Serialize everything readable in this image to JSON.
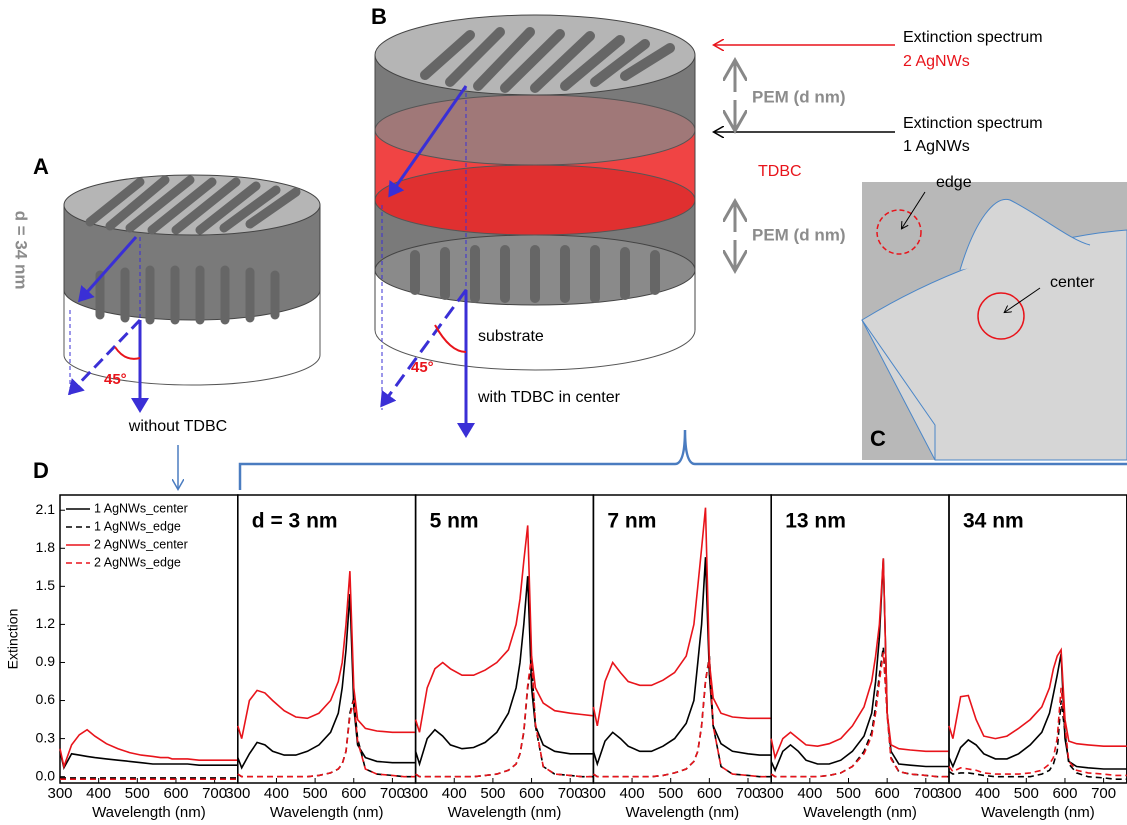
{
  "diagram": {
    "panel_a": "A",
    "panel_b": "B",
    "panel_c": "C",
    "panel_d": "D",
    "thickness": "d = 34 nm",
    "angle_a": "45°",
    "angle_b": "45°",
    "without": "without TDBC",
    "ext_top": "Extinction spectrum",
    "ext_top_n": "2 AgNWs",
    "pem_top": "PEM (d nm)",
    "ext_mid": "Extinction spectrum",
    "ext_mid_n": "1 AgNWs",
    "tdbc": "TDBC",
    "pem_bottom": "PEM (d nm)",
    "substrate": "substrate",
    "with": "with TDBC in center",
    "edge": "edge",
    "center": "center"
  },
  "chart_data": [
    {
      "type": "line",
      "ylabel": "Extinction",
      "xlabel": "Wavelength (nm)",
      "legend": "upper left",
      "x": [
        300,
        310,
        330,
        350,
        370,
        390,
        420,
        450,
        480,
        510,
        540,
        560,
        570,
        580,
        590,
        600,
        610,
        630,
        660,
        700,
        730,
        760
      ],
      "xlim": [
        300,
        760
      ],
      "xticks": [
        300,
        400,
        500,
        600,
        700
      ],
      "ylim": [
        -0.05,
        2.22
      ],
      "yticks": [
        {
          "value": 0,
          "label": "0.0"
        },
        0.3,
        0.6,
        0.9,
        1.2,
        1.5,
        1.8,
        2.1
      ],
      "series": [
        {
          "name": "1 AgNWs_center",
          "color": "#000000",
          "style": "solid",
          "values": [
            0.2,
            0.07,
            0.18,
            0.17,
            0.16,
            0.15,
            0.14,
            0.13,
            0.12,
            0.11,
            0.1,
            0.1,
            0.1,
            0.1,
            0.1,
            0.1,
            0.1,
            0.1,
            0.09,
            0.09,
            0.09,
            0.09
          ]
        },
        {
          "name": "1 AgNWs_edge",
          "color": "#000000",
          "style": "dashed",
          "values": [
            -0.01,
            -0.01,
            -0.01,
            -0.01,
            -0.01,
            -0.01,
            -0.01,
            -0.01,
            -0.01,
            -0.01,
            -0.01,
            -0.01,
            -0.01,
            -0.01,
            -0.01,
            -0.01,
            -0.01,
            -0.01,
            -0.01,
            -0.01,
            -0.01,
            -0.01
          ]
        },
        {
          "name": "2 AgNWs_center",
          "color": "#e8141b",
          "style": "solid",
          "values": [
            0.22,
            0.08,
            0.25,
            0.33,
            0.37,
            0.32,
            0.26,
            0.22,
            0.19,
            0.17,
            0.16,
            0.15,
            0.15,
            0.15,
            0.14,
            0.14,
            0.14,
            0.14,
            0.13,
            0.13,
            0.13,
            0.13
          ]
        },
        {
          "name": "2 AgNWs_edge",
          "color": "#e8141b",
          "style": "dashed",
          "values": [
            -0.02,
            -0.02,
            -0.02,
            -0.02,
            -0.02,
            -0.02,
            -0.02,
            -0.02,
            -0.02,
            -0.02,
            -0.02,
            -0.02,
            -0.02,
            -0.02,
            -0.02,
            -0.02,
            -0.02,
            -0.02,
            -0.02,
            -0.02,
            -0.02,
            -0.02
          ]
        }
      ]
    },
    {
      "type": "line",
      "title": "d = 3 nm",
      "xlabel": "Wavelength (nm)",
      "x": [
        300,
        310,
        330,
        350,
        370,
        390,
        420,
        450,
        480,
        510,
        540,
        560,
        570,
        580,
        590,
        600,
        610,
        630,
        660,
        700,
        730,
        760
      ],
      "xlim": [
        300,
        760
      ],
      "xticks": [
        300,
        400,
        500,
        600,
        700
      ],
      "ylim": [
        -0.05,
        2.22
      ],
      "series": [
        {
          "color": "#000000",
          "style": "solid",
          "values": [
            0.15,
            0.07,
            0.18,
            0.27,
            0.25,
            0.2,
            0.17,
            0.17,
            0.2,
            0.25,
            0.35,
            0.5,
            0.7,
            1.0,
            1.44,
            0.55,
            0.25,
            0.15,
            0.12,
            0.11,
            0.11,
            0.11
          ]
        },
        {
          "color": "#000000",
          "style": "dashed",
          "values": [
            0.02,
            0,
            0,
            0,
            0,
            0,
            0,
            0,
            0,
            0.01,
            0.03,
            0.06,
            0.1,
            0.2,
            0.5,
            0.62,
            0.3,
            0.06,
            0.02,
            0.01,
            0,
            0
          ]
        },
        {
          "color": "#e8141b",
          "style": "solid",
          "values": [
            0.4,
            0.3,
            0.6,
            0.68,
            0.66,
            0.6,
            0.52,
            0.47,
            0.46,
            0.5,
            0.6,
            0.75,
            0.9,
            1.2,
            1.62,
            0.7,
            0.45,
            0.38,
            0.36,
            0.35,
            0.35,
            0.35
          ]
        },
        {
          "color": "#e8141b",
          "style": "dashed",
          "values": [
            0.02,
            0,
            0,
            0,
            0,
            0,
            0,
            0,
            0,
            0.01,
            0.03,
            0.06,
            0.1,
            0.2,
            0.48,
            0.6,
            0.28,
            0.06,
            0.02,
            0.01,
            0,
            0
          ]
        }
      ]
    },
    {
      "type": "line",
      "title": "5 nm",
      "xlabel": "Wavelength (nm)",
      "x": [
        300,
        310,
        330,
        350,
        370,
        390,
        420,
        450,
        480,
        510,
        540,
        560,
        570,
        580,
        590,
        600,
        610,
        630,
        660,
        700,
        730,
        760
      ],
      "xlim": [
        300,
        760
      ],
      "xticks": [
        300,
        400,
        500,
        600,
        700
      ],
      "ylim": [
        -0.05,
        2.22
      ],
      "series": [
        {
          "color": "#000000",
          "style": "solid",
          "values": [
            0.2,
            0.1,
            0.3,
            0.37,
            0.32,
            0.25,
            0.22,
            0.23,
            0.27,
            0.35,
            0.5,
            0.7,
            0.9,
            1.2,
            1.58,
            0.7,
            0.4,
            0.25,
            0.2,
            0.18,
            0.18,
            0.18
          ]
        },
        {
          "color": "#000000",
          "style": "dashed",
          "values": [
            0.02,
            0,
            0,
            0,
            0,
            0,
            0,
            0,
            0.01,
            0.02,
            0.05,
            0.1,
            0.18,
            0.35,
            0.7,
            0.9,
            0.4,
            0.08,
            0.02,
            0.01,
            0,
            0
          ]
        },
        {
          "color": "#e8141b",
          "style": "solid",
          "values": [
            0.45,
            0.35,
            0.7,
            0.85,
            0.9,
            0.85,
            0.8,
            0.8,
            0.84,
            0.9,
            1.0,
            1.2,
            1.4,
            1.7,
            1.98,
            0.95,
            0.7,
            0.58,
            0.52,
            0.5,
            0.49,
            0.48
          ]
        },
        {
          "color": "#e8141b",
          "style": "dashed",
          "values": [
            0.02,
            0,
            0,
            0,
            0,
            0,
            0,
            0,
            0.01,
            0.02,
            0.05,
            0.1,
            0.18,
            0.36,
            0.72,
            0.95,
            0.42,
            0.08,
            0.02,
            0.01,
            0,
            0
          ]
        }
      ]
    },
    {
      "type": "line",
      "title": "7 nm",
      "xlabel": "Wavelength (nm)",
      "x": [
        300,
        310,
        330,
        350,
        370,
        390,
        420,
        450,
        480,
        510,
        540,
        560,
        570,
        580,
        590,
        600,
        610,
        630,
        660,
        700,
        730,
        760
      ],
      "xlim": [
        300,
        760
      ],
      "xticks": [
        300,
        400,
        500,
        600,
        700
      ],
      "ylim": [
        -0.05,
        2.22
      ],
      "series": [
        {
          "color": "#000000",
          "style": "solid",
          "values": [
            0.2,
            0.1,
            0.28,
            0.35,
            0.3,
            0.24,
            0.2,
            0.2,
            0.24,
            0.3,
            0.42,
            0.6,
            0.9,
            1.2,
            1.73,
            0.8,
            0.4,
            0.26,
            0.2,
            0.18,
            0.17,
            0.17
          ]
        },
        {
          "color": "#000000",
          "style": "dashed",
          "values": [
            0.02,
            0,
            0,
            0,
            0,
            0,
            0,
            0,
            0.01,
            0.03,
            0.06,
            0.12,
            0.2,
            0.4,
            0.75,
            0.95,
            0.4,
            0.08,
            0.02,
            0.01,
            0,
            0
          ]
        },
        {
          "color": "#e8141b",
          "style": "solid",
          "values": [
            0.55,
            0.4,
            0.75,
            0.9,
            0.82,
            0.75,
            0.72,
            0.72,
            0.76,
            0.82,
            0.95,
            1.2,
            1.5,
            1.8,
            2.12,
            0.9,
            0.62,
            0.5,
            0.47,
            0.46,
            0.46,
            0.46
          ]
        },
        {
          "color": "#e8141b",
          "style": "dashed",
          "values": [
            0.02,
            0,
            0,
            0,
            0,
            0,
            0,
            0,
            0.01,
            0.03,
            0.06,
            0.12,
            0.2,
            0.4,
            0.76,
            0.93,
            0.4,
            0.08,
            0.02,
            0.01,
            0,
            0
          ]
        }
      ]
    },
    {
      "type": "line",
      "title": "13 nm",
      "xlabel": "Wavelength (nm)",
      "x": [
        300,
        310,
        330,
        350,
        370,
        390,
        420,
        450,
        480,
        510,
        540,
        560,
        570,
        580,
        590,
        600,
        610,
        630,
        660,
        700,
        730,
        760
      ],
      "xlim": [
        300,
        760
      ],
      "xticks": [
        300,
        400,
        500,
        600,
        700
      ],
      "ylim": [
        -0.05,
        2.22
      ],
      "series": [
        {
          "color": "#000000",
          "style": "solid",
          "values": [
            0.12,
            0.05,
            0.2,
            0.25,
            0.2,
            0.13,
            0.1,
            0.1,
            0.13,
            0.2,
            0.32,
            0.5,
            0.75,
            1.1,
            1.72,
            0.5,
            0.2,
            0.1,
            0.09,
            0.08,
            0.08,
            0.08
          ]
        },
        {
          "color": "#000000",
          "style": "dashed",
          "values": [
            0.02,
            0,
            0,
            0,
            0,
            0,
            0,
            0.01,
            0.03,
            0.08,
            0.2,
            0.35,
            0.55,
            0.8,
            1.02,
            0.5,
            0.15,
            0.04,
            0.02,
            0.01,
            0,
            0
          ]
        },
        {
          "color": "#e8141b",
          "style": "solid",
          "values": [
            0.3,
            0.15,
            0.3,
            0.35,
            0.3,
            0.25,
            0.24,
            0.26,
            0.3,
            0.4,
            0.55,
            0.75,
            0.95,
            1.2,
            1.72,
            0.5,
            0.25,
            0.22,
            0.21,
            0.2,
            0.2,
            0.2
          ]
        },
        {
          "color": "#e8141b",
          "style": "dashed",
          "values": [
            0.02,
            0,
            0,
            0,
            0,
            0,
            0,
            0.01,
            0.03,
            0.08,
            0.18,
            0.32,
            0.5,
            0.75,
            0.98,
            0.48,
            0.14,
            0.04,
            0.02,
            0.01,
            0,
            0
          ]
        }
      ]
    },
    {
      "type": "line",
      "title": "34 nm",
      "xlabel": "Wavelength (nm)",
      "x": [
        300,
        310,
        330,
        350,
        370,
        390,
        420,
        450,
        480,
        510,
        540,
        560,
        570,
        580,
        590,
        600,
        610,
        630,
        660,
        700,
        730,
        760
      ],
      "xlim": [
        300,
        760
      ],
      "xticks": [
        300,
        400,
        500,
        600,
        700
      ],
      "ylim": [
        -0.05,
        2.22
      ],
      "series": [
        {
          "color": "#000000",
          "style": "solid",
          "values": [
            0.15,
            0.08,
            0.23,
            0.29,
            0.25,
            0.18,
            0.14,
            0.14,
            0.18,
            0.25,
            0.35,
            0.5,
            0.65,
            0.8,
            0.97,
            0.3,
            0.12,
            0.08,
            0.07,
            0.06,
            0.06,
            0.06
          ]
        },
        {
          "color": "#000000",
          "style": "dashed",
          "values": [
            0.04,
            0.02,
            0.03,
            0.03,
            0.02,
            0.01,
            0,
            0,
            0,
            0,
            0.02,
            0.05,
            0.1,
            0.2,
            0.6,
            0.35,
            0.1,
            0.03,
            0,
            -0.01,
            -0.02,
            -0.02
          ]
        },
        {
          "color": "#e8141b",
          "style": "solid",
          "values": [
            0.4,
            0.3,
            0.63,
            0.64,
            0.45,
            0.32,
            0.3,
            0.32,
            0.38,
            0.45,
            0.55,
            0.7,
            0.85,
            0.95,
            1.0,
            0.45,
            0.28,
            0.26,
            0.25,
            0.24,
            0.24,
            0.24
          ]
        },
        {
          "color": "#e8141b",
          "style": "dashed",
          "values": [
            0.08,
            0.04,
            0.07,
            0.06,
            0.05,
            0.03,
            0.02,
            0.02,
            0.02,
            0.03,
            0.05,
            0.1,
            0.15,
            0.3,
            0.7,
            0.4,
            0.12,
            0.05,
            0.03,
            0.02,
            0.01,
            0.01
          ]
        }
      ]
    }
  ]
}
